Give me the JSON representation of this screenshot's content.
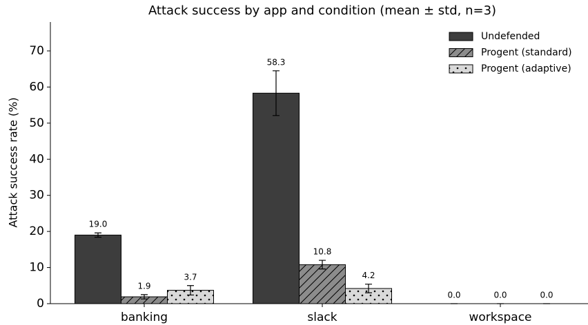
{
  "chart_data": {
    "type": "bar",
    "title": "Attack success by app and condition (mean ± std, n=3)",
    "y_label": "Attack success rate (%)",
    "categories": [
      "banking",
      "slack",
      "workspace"
    ],
    "series": [
      {
        "name": "Undefended",
        "color": "#3d3d3d",
        "hatch": "",
        "values": [
          19.0,
          58.3,
          0.0
        ],
        "errors": [
          0.6,
          6.2,
          0.0
        ],
        "value_labels": [
          "19.0",
          "58.3",
          "0.0"
        ]
      },
      {
        "name": "Progent (standard)",
        "color": "#8c8c8c",
        "hatch": "/",
        "values": [
          1.9,
          10.8,
          0.0
        ],
        "errors": [
          0.6,
          1.2,
          0.0
        ],
        "value_labels": [
          "1.9",
          "10.8",
          "0.0"
        ]
      },
      {
        "name": "Progent (adaptive)",
        "color": "#d9d9d9",
        "hatch": ".",
        "values": [
          3.7,
          4.2,
          0.0
        ],
        "errors": [
          1.3,
          1.2,
          0.0
        ],
        "value_labels": [
          "3.7",
          "4.2",
          "0.0"
        ]
      }
    ],
    "ylim": [
      0,
      78
    ],
    "yticks": [
      0,
      10,
      20,
      30,
      40,
      50,
      60,
      70
    ],
    "grid": false,
    "legend": "upper right"
  }
}
